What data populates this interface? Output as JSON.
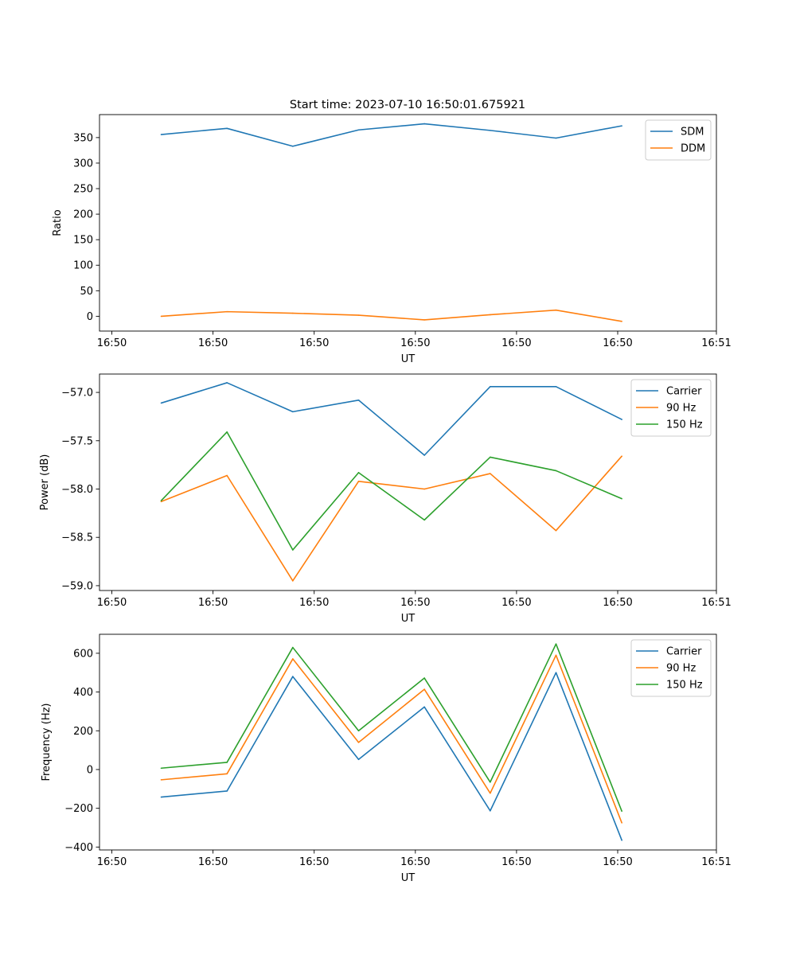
{
  "figure_title": "Start time: 2023-07-10 16:50:01.675921",
  "colors": {
    "blue": "#1f77b4",
    "orange": "#ff7f0e",
    "green": "#2ca02c",
    "legend_edge": "#cccccc"
  },
  "chart_data": [
    {
      "type": "line",
      "title": "Start time: 2023-07-10 16:50:01.675921",
      "xlabel": "UT",
      "ylabel": "Ratio",
      "x": [
        0.75,
        1.55,
        2.35,
        3.15,
        3.95,
        4.75,
        5.55,
        6.35
      ],
      "xlim": [
        0,
        7.5
      ],
      "xticks": [
        0.15,
        1.38,
        2.61,
        3.84,
        5.07,
        6.3,
        7.5
      ],
      "xticklabels": [
        "16:50",
        "16:50",
        "16:50",
        "16:50",
        "16:50",
        "16:50",
        "16:51"
      ],
      "ylim": [
        -29,
        395
      ],
      "yticks": [
        0,
        50,
        100,
        150,
        200,
        250,
        300,
        350
      ],
      "yticklabels": [
        "0",
        "50",
        "100",
        "150",
        "200",
        "250",
        "300",
        "350"
      ],
      "legend_position": "top-right",
      "series": [
        {
          "name": "SDM",
          "color": "#1f77b4",
          "values": [
            356,
            368,
            333,
            365,
            377,
            364,
            349,
            373
          ]
        },
        {
          "name": "DDM",
          "color": "#ff7f0e",
          "values": [
            0,
            9,
            6,
            2,
            -7,
            3,
            12,
            -10
          ]
        }
      ]
    },
    {
      "type": "line",
      "title": "",
      "xlabel": "UT",
      "ylabel": "Power (dB)",
      "x": [
        0.75,
        1.55,
        2.35,
        3.15,
        3.95,
        4.75,
        5.55,
        6.35
      ],
      "xlim": [
        0,
        7.5
      ],
      "xticks": [
        0.15,
        1.38,
        2.61,
        3.84,
        5.07,
        6.3,
        7.5
      ],
      "xticklabels": [
        "16:50",
        "16:50",
        "16:50",
        "16:50",
        "16:50",
        "16:50",
        "16:51"
      ],
      "ylim": [
        -59.05,
        -56.81
      ],
      "yticks": [
        -57.0,
        -57.5,
        -58.0,
        -58.5,
        -59.0
      ],
      "yticklabels": [
        "−57.0",
        "−57.5",
        "−58.0",
        "−58.5",
        "−59.0"
      ],
      "legend_position": "top-right",
      "series": [
        {
          "name": "Carrier",
          "color": "#1f77b4",
          "values": [
            -57.11,
            -56.9,
            -57.2,
            -57.08,
            -57.65,
            -56.94,
            -56.94,
            -57.28
          ]
        },
        {
          "name": "90 Hz",
          "color": "#ff7f0e",
          "values": [
            -58.13,
            -57.86,
            -58.95,
            -57.92,
            -58.0,
            -57.84,
            -58.43,
            -57.66
          ]
        },
        {
          "name": "150 Hz",
          "color": "#2ca02c",
          "values": [
            -58.12,
            -57.41,
            -58.63,
            -57.83,
            -58.32,
            -57.67,
            -57.81,
            -58.1
          ]
        }
      ]
    },
    {
      "type": "line",
      "title": "",
      "xlabel": "UT",
      "ylabel": "Frequency (Hz)",
      "x": [
        0.75,
        1.55,
        2.35,
        3.15,
        3.95,
        4.75,
        5.55,
        6.35
      ],
      "xlim": [
        0,
        7.5
      ],
      "xticks": [
        0.15,
        1.38,
        2.61,
        3.84,
        5.07,
        6.3,
        7.5
      ],
      "xticklabels": [
        "16:50",
        "16:50",
        "16:50",
        "16:50",
        "16:50",
        "16:50",
        "16:51"
      ],
      "ylim": [
        -415,
        698
      ],
      "yticks": [
        600,
        400,
        200,
        0,
        -200,
        -400
      ],
      "yticklabels": [
        "600",
        "400",
        "200",
        "0",
        "−200",
        "−400"
      ],
      "legend_position": "top-right",
      "series": [
        {
          "name": "Carrier",
          "color": "#1f77b4",
          "values": [
            -142,
            -111,
            480,
            52,
            323,
            -213,
            500,
            -365
          ]
        },
        {
          "name": "90 Hz",
          "color": "#ff7f0e",
          "values": [
            -53,
            -22,
            571,
            140,
            414,
            -122,
            590,
            -275
          ]
        },
        {
          "name": "150 Hz",
          "color": "#2ca02c",
          "values": [
            7,
            37,
            630,
            200,
            472,
            -65,
            648,
            -215
          ]
        }
      ]
    }
  ]
}
